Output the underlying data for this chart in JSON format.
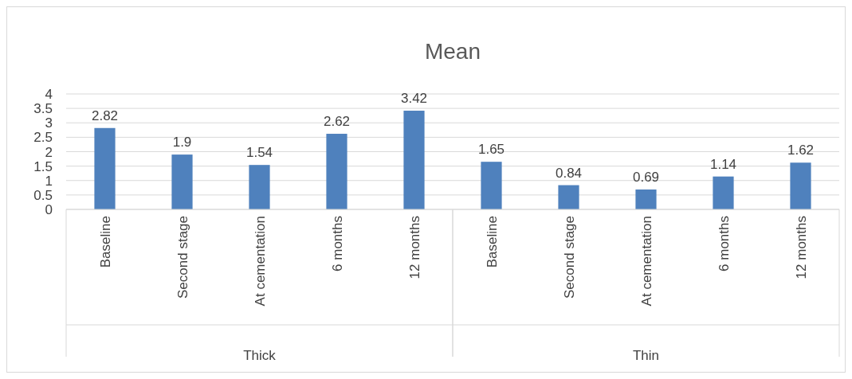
{
  "chart_data": {
    "type": "bar",
    "title": "Mean",
    "categories": [
      "Baseline",
      "Second stage",
      "At cementation",
      "6 months",
      "12 months",
      "Baseline",
      "Second stage",
      "At cementation",
      "6 months",
      "12 months"
    ],
    "values": [
      2.82,
      1.9,
      1.54,
      2.62,
      3.42,
      1.65,
      0.84,
      0.69,
      1.14,
      1.62
    ],
    "color": "#4f81bd",
    "ylim": [
      0,
      4
    ],
    "yticks": [
      0,
      0.5,
      1,
      1.5,
      2,
      2.5,
      3,
      3.5,
      4
    ],
    "grid": "y",
    "data_labels": true,
    "annotations": [
      "Thick",
      "Thin"
    ]
  }
}
